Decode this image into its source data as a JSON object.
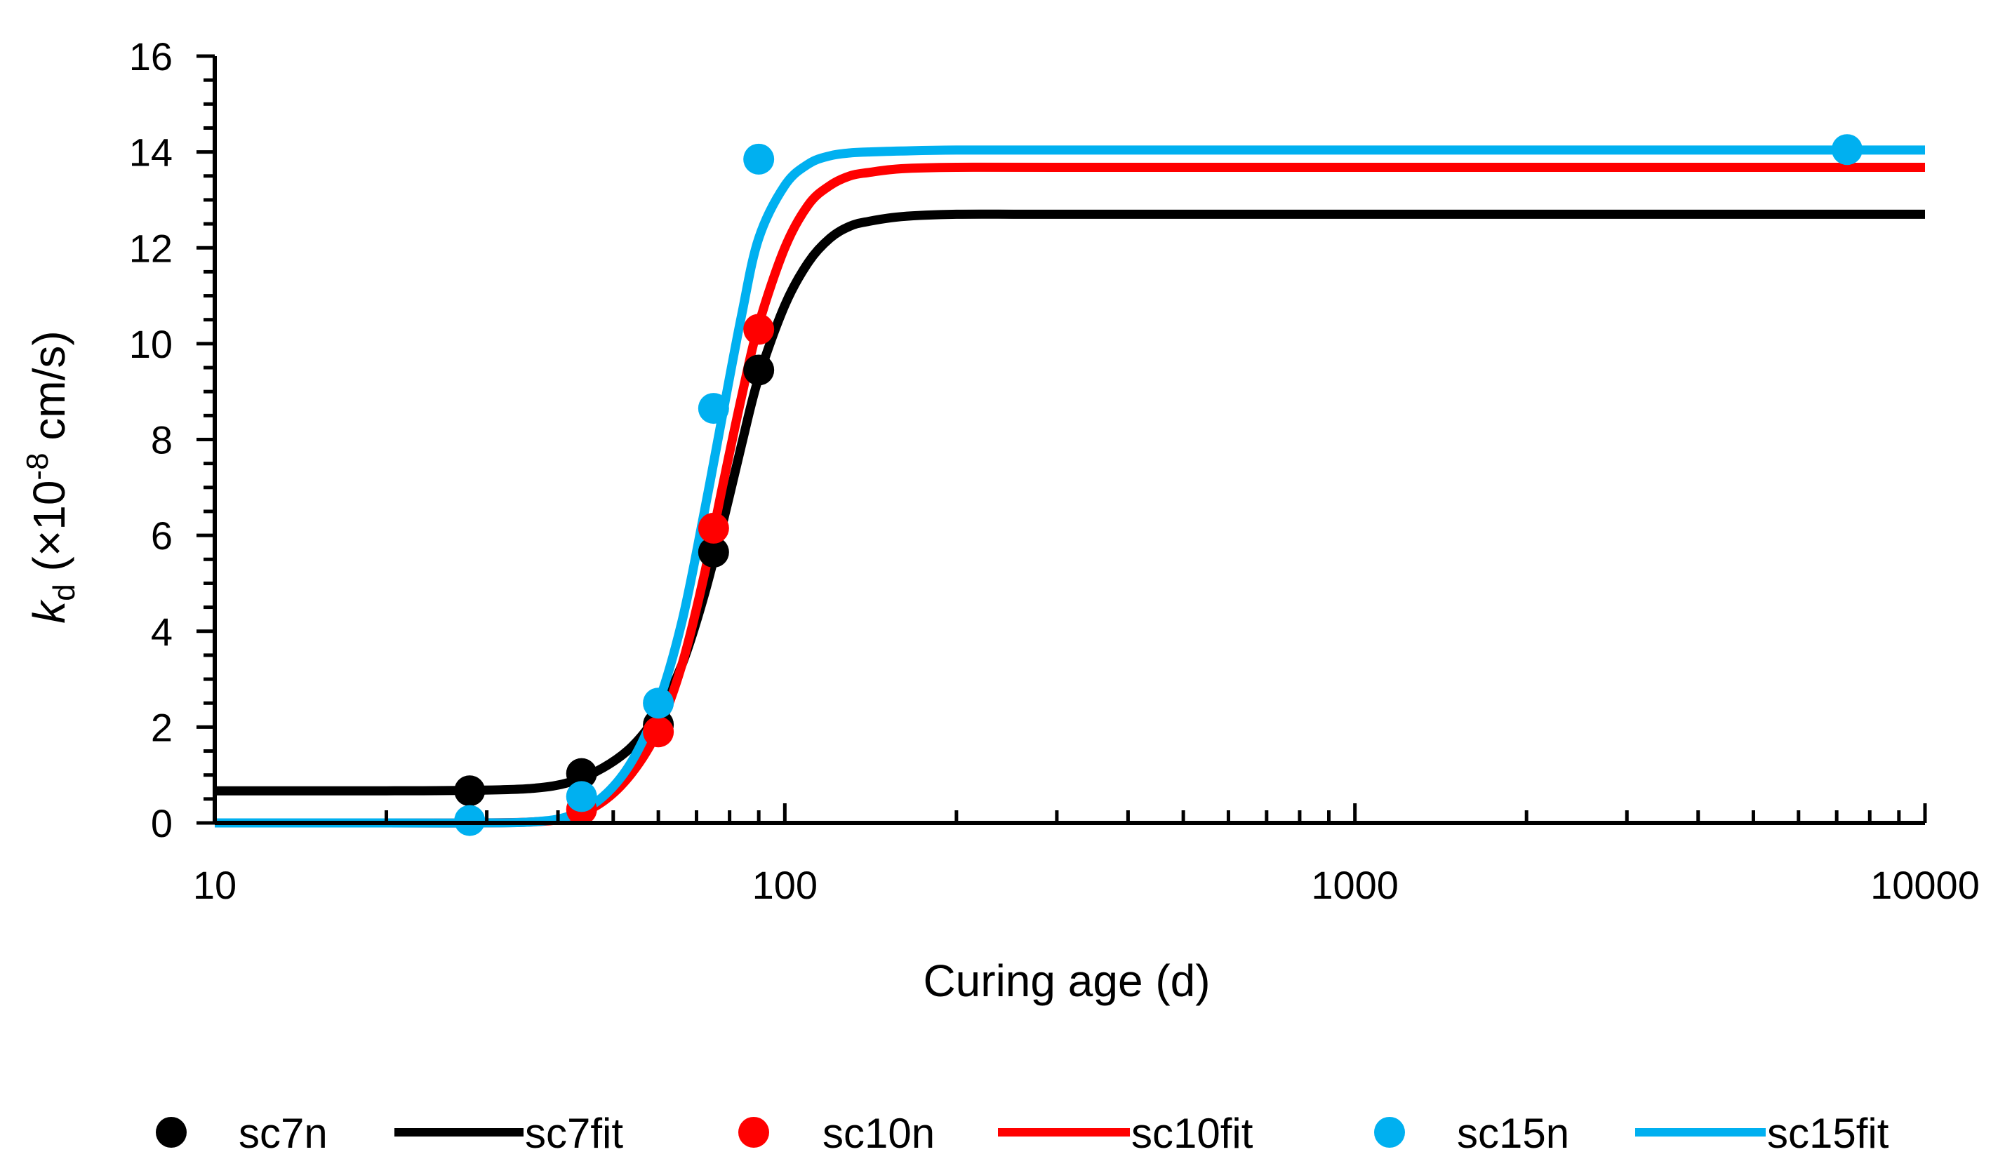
{
  "chart_data": {
    "type": "scatter",
    "title": "",
    "xlabel": "Curing age (d)",
    "ylabel": {
      "symbol": "k",
      "subscript": "d",
      "prefix": " (×10",
      "superscript": "-8",
      "suffix": " cm/s)"
    },
    "xscale": "log",
    "xlim": [
      10,
      10000
    ],
    "ylim": [
      0,
      16
    ],
    "x_tick_values": [
      10,
      100,
      1000,
      10000
    ],
    "x_tick_labels": [
      "10",
      "100",
      "1000",
      "10000"
    ],
    "y_tick_values": [
      0,
      2,
      4,
      6,
      8,
      10,
      12,
      14,
      16
    ],
    "y_tick_labels": [
      "0",
      "2",
      "4",
      "6",
      "8",
      "10",
      "12",
      "14",
      "16"
    ],
    "grid": false,
    "legend_position": "bottom",
    "series": [
      {
        "name": "sc7n",
        "kind": "markers",
        "color": "#000000",
        "x": [
          28,
          44,
          60,
          75,
          90
        ],
        "y": [
          0.67,
          1.03,
          2.05,
          5.65,
          9.45
        ]
      },
      {
        "name": "sc7fit",
        "kind": "line",
        "color": "#000000",
        "x": [
          10,
          20,
          28,
          36,
          42,
          48,
          54,
          60,
          66,
          72,
          78,
          84,
          90,
          100,
          110,
          120,
          130,
          140,
          160,
          200,
          300,
          1000,
          10000
        ],
        "y": [
          0.67,
          0.67,
          0.68,
          0.72,
          0.85,
          1.15,
          1.6,
          2.3,
          3.3,
          4.7,
          6.3,
          7.9,
          9.3,
          10.8,
          11.7,
          12.2,
          12.45,
          12.55,
          12.65,
          12.7,
          12.7,
          12.7,
          12.7
        ]
      },
      {
        "name": "sc10n",
        "kind": "markers",
        "color": "#ff0000",
        "x": [
          44,
          60,
          75,
          90
        ],
        "y": [
          0.28,
          1.9,
          6.15,
          10.3
        ]
      },
      {
        "name": "sc10fit",
        "kind": "line",
        "color": "#ff0000",
        "x": [
          10,
          20,
          28,
          36,
          42,
          48,
          54,
          60,
          66,
          72,
          78,
          84,
          90,
          100,
          110,
          120,
          130,
          140,
          160,
          200,
          300,
          1000,
          10000
        ],
        "y": [
          0,
          0,
          0,
          0.02,
          0.12,
          0.45,
          1.05,
          1.95,
          3.3,
          5.1,
          7.1,
          8.9,
          10.4,
          12.0,
          12.9,
          13.3,
          13.5,
          13.57,
          13.65,
          13.68,
          13.68,
          13.68,
          13.68
        ]
      },
      {
        "name": "sc15n",
        "kind": "markers",
        "color": "#00b0f0",
        "x": [
          28,
          44,
          60,
          75,
          90,
          7300
        ],
        "y": [
          0.05,
          0.55,
          2.5,
          8.65,
          13.85,
          14.05
        ]
      },
      {
        "name": "sc15fit",
        "kind": "line",
        "color": "#00b0f0",
        "x": [
          10,
          20,
          28,
          36,
          42,
          48,
          54,
          60,
          66,
          72,
          78,
          84,
          90,
          100,
          110,
          120,
          130,
          140,
          160,
          200,
          300,
          1000,
          10000
        ],
        "y": [
          0,
          0,
          0,
          0.02,
          0.15,
          0.55,
          1.3,
          2.5,
          4.2,
          6.4,
          8.6,
          10.6,
          12.2,
          13.3,
          13.75,
          13.92,
          13.98,
          14.0,
          14.02,
          14.04,
          14.04,
          14.04,
          14.04
        ]
      }
    ]
  }
}
